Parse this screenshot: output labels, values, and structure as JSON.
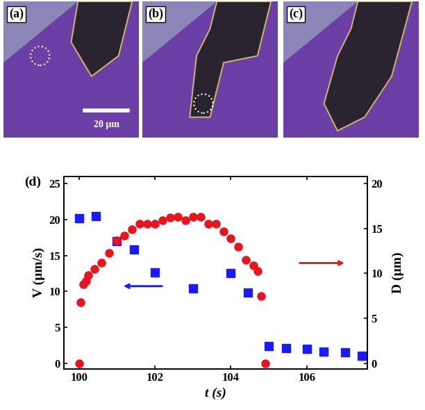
{
  "panels": [
    {
      "label": "(a)"
    },
    {
      "label": "(b)"
    },
    {
      "label": "(c)"
    }
  ],
  "scale_bar": "20 µm",
  "chart_data": {
    "type": "scatter",
    "label": "(d)",
    "x_label": "t (s)",
    "y_label": "V (µm/s)",
    "y2_label": "D (µm)",
    "xlim": [
      99.6,
      107.6
    ],
    "xticks": [
      100,
      102,
      104,
      106
    ],
    "ylim": [
      -0.8,
      26
    ],
    "yticks": [
      0,
      5,
      10,
      15,
      20,
      25
    ],
    "y2lim": [
      -0.64,
      20.8
    ],
    "y2ticks": [
      0,
      5,
      10,
      15,
      20
    ],
    "series": [
      {
        "color": "#1a1aff",
        "marker": "square",
        "axis": "y",
        "x": [
          100.0,
          100.45,
          101.0,
          101.45,
          102.0,
          103.0,
          104.0,
          104.45,
          105.0,
          105.45,
          106.0,
          106.45,
          107.0,
          107.45
        ],
        "values": [
          20.2,
          20.5,
          17.0,
          15.8,
          12.6,
          10.4,
          12.5,
          9.8,
          2.4,
          2.1,
          2.0,
          1.6,
          1.5,
          1.0
        ]
      },
      {
        "color": "#e8141e",
        "marker": "circle",
        "axis": "y2",
        "x": [
          100.0,
          100.05,
          100.12,
          100.18,
          100.25,
          100.4,
          100.6,
          100.8,
          101.0,
          101.2,
          101.4,
          101.6,
          101.8,
          102.0,
          102.2,
          102.4,
          102.6,
          102.8,
          103.0,
          103.2,
          103.4,
          103.6,
          103.8,
          104.0,
          104.2,
          104.4,
          104.6,
          104.7,
          104.8,
          104.9
        ],
        "values": [
          0,
          6.8,
          8.8,
          9.2,
          9.8,
          10.5,
          11.2,
          12.3,
          13.7,
          14.2,
          14.9,
          15.5,
          15.5,
          15.5,
          15.9,
          16.2,
          16.3,
          15.9,
          16.3,
          16.3,
          15.5,
          15.5,
          14.7,
          13.9,
          13.0,
          11.5,
          10.9,
          10.3,
          7.5,
          0
        ]
      }
    ]
  }
}
